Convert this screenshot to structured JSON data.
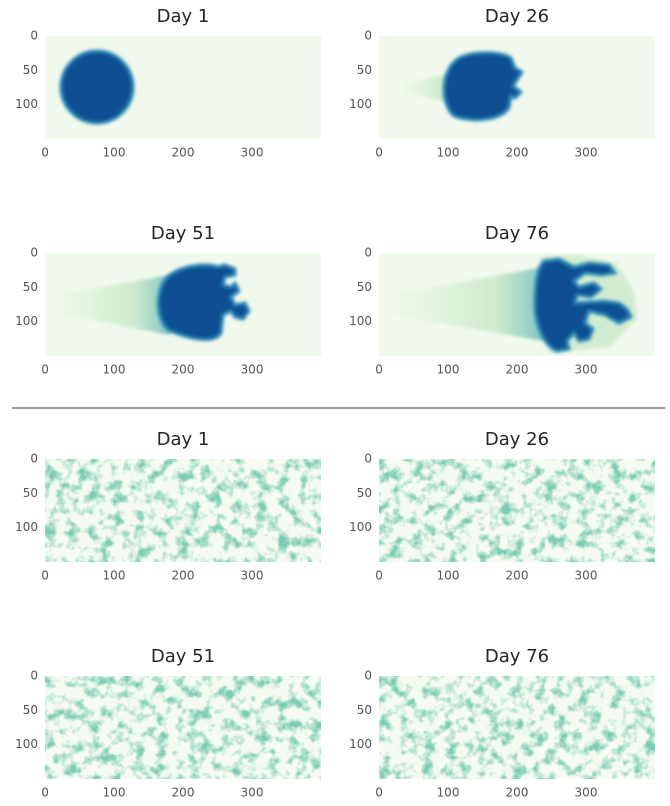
{
  "chart_data": [
    {
      "type": "image",
      "title": "Day 1",
      "xlim": [
        0,
        400
      ],
      "ylim": [
        150,
        0
      ],
      "xticks": [
        0,
        100,
        200,
        300
      ],
      "yticks": [
        0,
        50,
        100
      ]
    },
    {
      "type": "image",
      "title": "Day 26",
      "xlim": [
        0,
        400
      ],
      "ylim": [
        150,
        0
      ],
      "xticks": [
        0,
        100,
        200,
        300
      ],
      "yticks": [
        0,
        50,
        100
      ]
    },
    {
      "type": "image",
      "title": "Day 51",
      "xlim": [
        0,
        400
      ],
      "ylim": [
        150,
        0
      ],
      "xticks": [
        0,
        100,
        200,
        300
      ],
      "yticks": [
        0,
        50,
        100
      ]
    },
    {
      "type": "image",
      "title": "Day 76",
      "xlim": [
        0,
        400
      ],
      "ylim": [
        150,
        0
      ],
      "xticks": [
        0,
        100,
        200,
        300
      ],
      "yticks": [
        0,
        50,
        100
      ]
    },
    {
      "type": "image",
      "title": "Day 1",
      "xlim": [
        0,
        400
      ],
      "ylim": [
        150,
        0
      ],
      "xticks": [
        0,
        100,
        200,
        300
      ],
      "yticks": [
        0,
        50,
        100
      ]
    },
    {
      "type": "image",
      "title": "Day 26",
      "xlim": [
        0,
        400
      ],
      "ylim": [
        150,
        0
      ],
      "xticks": [
        0,
        100,
        200,
        300
      ],
      "yticks": [
        0,
        50,
        100
      ]
    },
    {
      "type": "image",
      "title": "Day 51",
      "xlim": [
        0,
        400
      ],
      "ylim": [
        150,
        0
      ],
      "xticks": [
        0,
        100,
        200,
        300
      ],
      "yticks": [
        0,
        50,
        100
      ]
    },
    {
      "type": "image",
      "title": "Day 76",
      "xlim": [
        0,
        400
      ],
      "ylim": [
        150,
        0
      ],
      "xticks": [
        0,
        100,
        200,
        300
      ],
      "yticks": [
        0,
        50,
        100
      ]
    }
  ]
}
